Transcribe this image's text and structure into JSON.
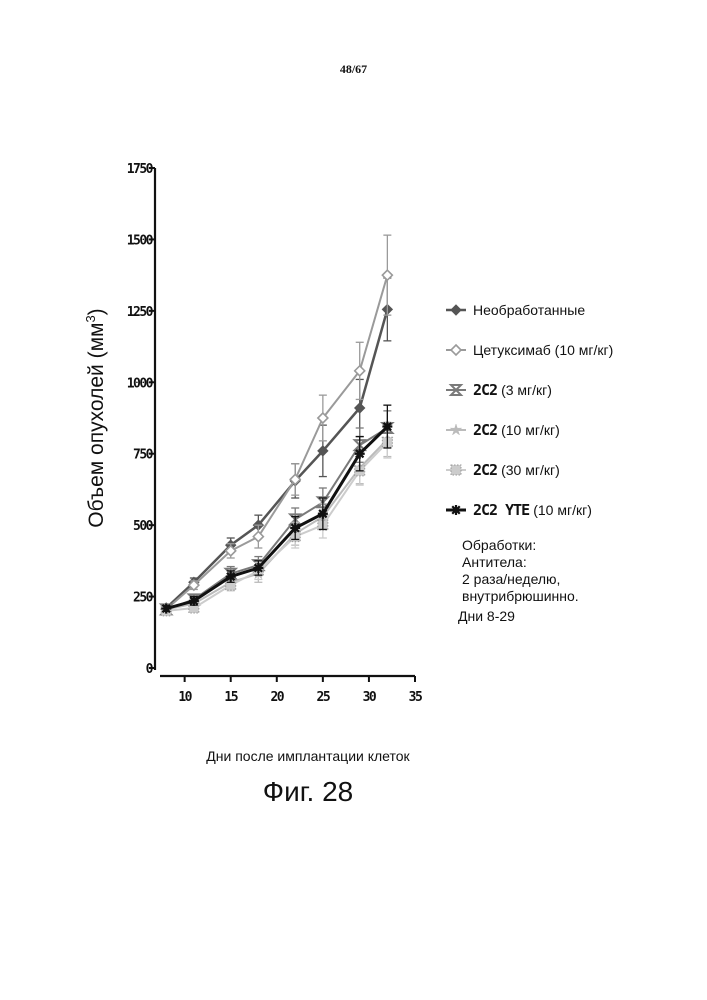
{
  "page": {
    "number": "48/67",
    "figure_caption": "Фиг. 28"
  },
  "notes": {
    "title": "Обработки:",
    "line1": "Антитела:",
    "line2": "2 раза/неделю,",
    "line3": "внутрибрюшинно.",
    "days": "Дни 8-29"
  },
  "chart_data": {
    "type": "line",
    "title": "",
    "xlabel": "Дни после имплантации клеток",
    "ylabel": "Объем опухолей (мм",
    "ylabel_sup": "3",
    "ylabel_suffix": ")",
    "xlim": [
      7,
      35
    ],
    "ylim": [
      0,
      1750
    ],
    "x_ticks": [
      10,
      15,
      20,
      25,
      30,
      35
    ],
    "y_ticks": [
      0,
      250,
      500,
      750,
      1000,
      1250,
      1500,
      1750
    ],
    "x": [
      8,
      11,
      15,
      18,
      22,
      25,
      29,
      32
    ],
    "series": [
      {
        "name": "Необработанные",
        "label_main": "",
        "label_suffix": "Необработанные",
        "color": "#555555",
        "marker": "diamond-filled",
        "width": 2.5,
        "values": [
          210,
          300,
          430,
          500,
          655,
          760,
          910,
          1255
        ],
        "errors": [
          12,
          15,
          25,
          35,
          60,
          90,
          100,
          110
        ]
      },
      {
        "name": "Цетуксимаб (10 мг/кг)",
        "label_main": "",
        "label_suffix": "Цетуксимаб (10 мг/кг)",
        "color": "#9a9a9a",
        "marker": "diamond-open",
        "width": 2,
        "values": [
          205,
          290,
          410,
          460,
          660,
          875,
          1040,
          1375
        ],
        "errors": [
          12,
          15,
          25,
          40,
          55,
          80,
          100,
          140
        ]
      },
      {
        "name": "2С2 (3 мг/кг)",
        "label_main": "2С2",
        "label_suffix": "(3 мг/кг)",
        "color": "#7a7a7a",
        "marker": "x-hourglass",
        "width": 2,
        "values": [
          205,
          240,
          330,
          360,
          520,
          580,
          780,
          840
        ],
        "errors": [
          10,
          15,
          25,
          30,
          40,
          50,
          60,
          60
        ]
      },
      {
        "name": "2С2 (10 мг/кг)",
        "label_main": "2С2",
        "label_suffix": "(10 мг/кг)",
        "color": "#bbbbbb",
        "marker": "star",
        "width": 2,
        "values": [
          205,
          225,
          300,
          330,
          470,
          530,
          700,
          800
        ],
        "errors": [
          10,
          15,
          20,
          30,
          40,
          45,
          55,
          60
        ]
      },
      {
        "name": "2С2 (30 мг/кг)",
        "label_main": "2С2",
        "label_suffix": "(30 мг/кг)",
        "color": "#cccccc",
        "marker": "square-dots",
        "width": 2,
        "values": [
          200,
          210,
          290,
          340,
          460,
          500,
          690,
          790
        ],
        "errors": [
          10,
          15,
          20,
          30,
          40,
          45,
          50,
          55
        ]
      },
      {
        "name": "2С2 YTE (10 мг/кг)",
        "label_main": "2С2 YTE",
        "label_suffix": "(10 мг/кг)",
        "color": "#111111",
        "marker": "asterisk",
        "width": 3,
        "values": [
          208,
          235,
          320,
          350,
          490,
          540,
          750,
          845
        ],
        "errors": [
          10,
          15,
          20,
          25,
          40,
          55,
          60,
          75
        ]
      }
    ]
  }
}
